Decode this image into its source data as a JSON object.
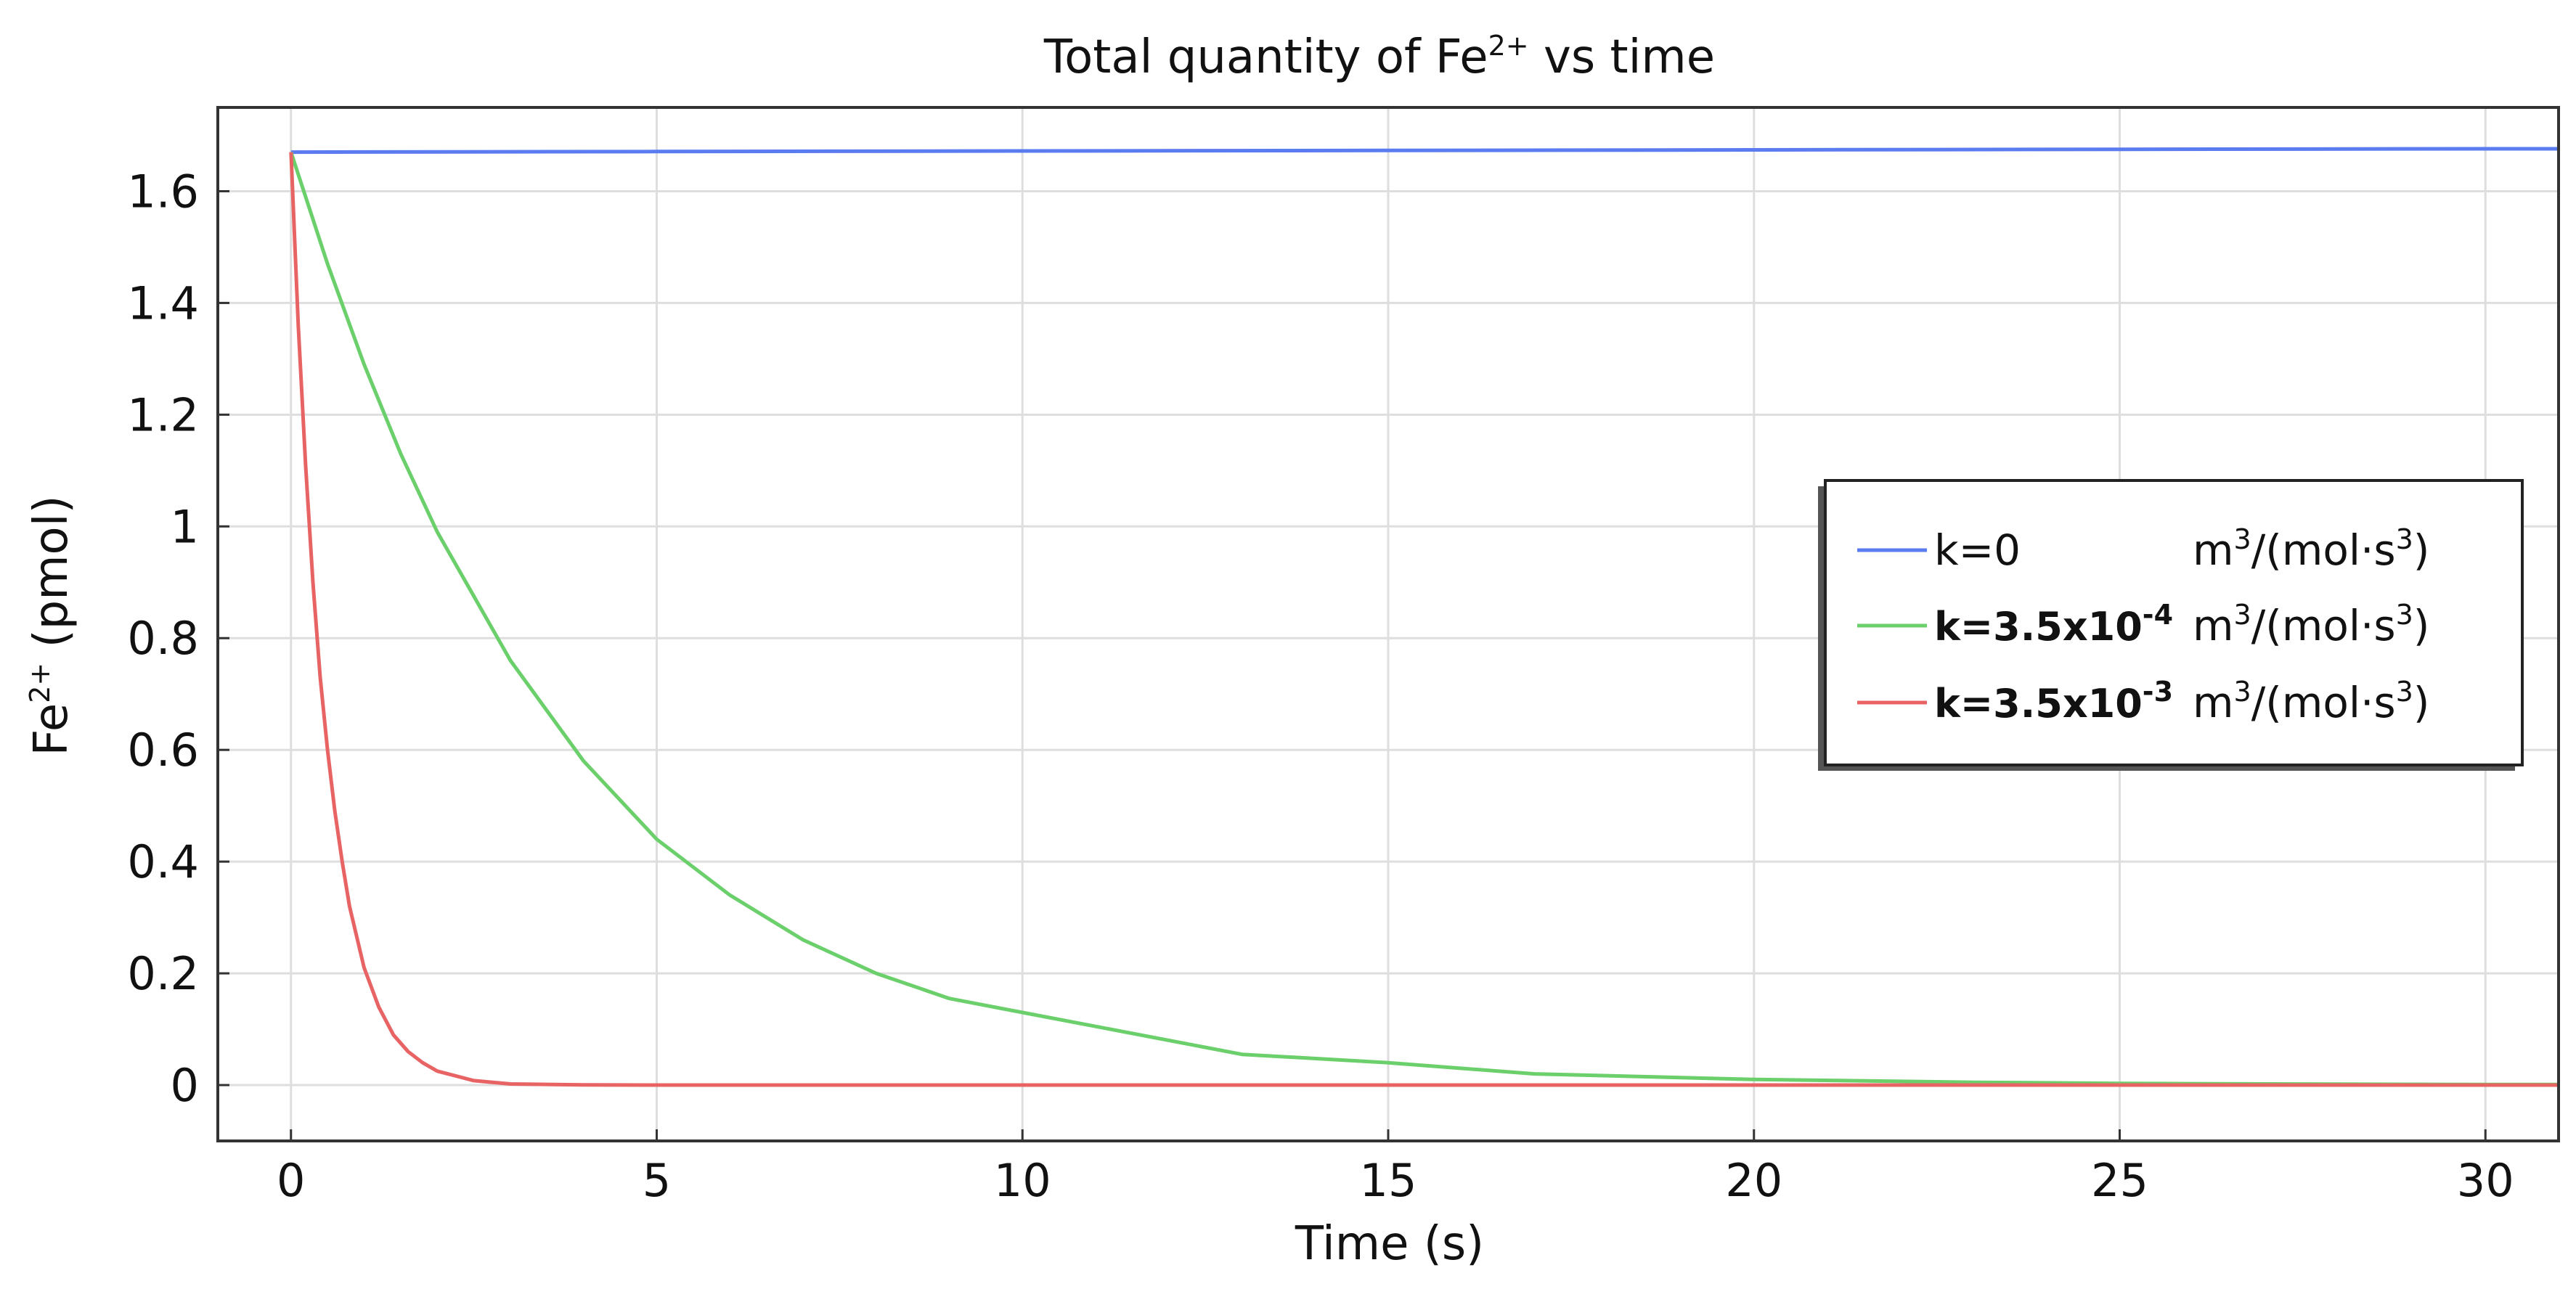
{
  "chart_data": {
    "type": "line",
    "title": {
      "base": "Total quantity of Fe",
      "sup": "2+",
      "rest": " vs time"
    },
    "xlabel": "Time (s)",
    "ylabel": {
      "base": "Fe",
      "sup": "2+",
      "rest": " (pmol)"
    },
    "xlim": [
      -1,
      31
    ],
    "ylim": [
      -0.1,
      1.75
    ],
    "x_ticks": [
      0,
      5,
      10,
      15,
      20,
      25,
      30
    ],
    "x_tick_labels": [
      "0",
      "5",
      "10",
      "15",
      "20",
      "25",
      "30"
    ],
    "y_ticks": [
      0,
      0.2,
      0.4,
      0.6,
      0.8,
      1.0,
      1.2,
      1.4,
      1.6
    ],
    "y_tick_labels": [
      "0",
      "0.2",
      "0.4",
      "0.6",
      "0.8",
      "1",
      "1.2",
      "1.4",
      "1.6"
    ],
    "grid": true,
    "legend_position": "right",
    "series": [
      {
        "name": "k=0 m3/(mol·s3)",
        "legend": {
          "k": "k=0",
          "k_sup": "",
          "unit_base": "m",
          "unit_sup1": "3",
          "unit_mid": "/(mol·s",
          "unit_sup2": "3",
          "unit_end": ")"
        },
        "color": "#5b7bf0",
        "x": [
          0,
          5,
          10,
          15,
          20,
          25,
          30,
          31
        ],
        "y": [
          1.67,
          1.671,
          1.672,
          1.673,
          1.674,
          1.675,
          1.676,
          1.676
        ]
      },
      {
        "name": "k=3.5x10-4 m3/(mol·s3)",
        "legend": {
          "k": "k=3.5x10",
          "k_sup": "-4",
          "unit_base": "m",
          "unit_sup1": "3",
          "unit_mid": "/(mol·s",
          "unit_sup2": "3",
          "unit_end": ")"
        },
        "color": "#6bd06b",
        "x": [
          0,
          0.5,
          1,
          1.5,
          2,
          3,
          4,
          5,
          6,
          7,
          8,
          9,
          10,
          11,
          12,
          13,
          15,
          17,
          20,
          23,
          25,
          27,
          30,
          31
        ],
        "y": [
          1.67,
          1.47,
          1.29,
          1.13,
          0.99,
          0.76,
          0.58,
          0.44,
          0.34,
          0.26,
          0.2,
          0.155,
          0.13,
          0.105,
          0.08,
          0.055,
          0.04,
          0.02,
          0.01,
          0.005,
          0.003,
          0.002,
          0.001,
          0.001
        ]
      },
      {
        "name": "k=3.5x10-3 m3/(mol·s3)",
        "legend": {
          "k": "k=3.5x10",
          "k_sup": "-3",
          "unit_base": "m",
          "unit_sup1": "3",
          "unit_mid": "/(mol·s",
          "unit_sup2": "3",
          "unit_end": ")"
        },
        "color": "#e86464",
        "x": [
          0,
          0.1,
          0.2,
          0.3,
          0.4,
          0.5,
          0.6,
          0.7,
          0.8,
          1.0,
          1.2,
          1.4,
          1.6,
          1.8,
          2.0,
          2.5,
          3,
          4,
          5,
          10,
          20,
          31
        ],
        "y": [
          1.67,
          1.36,
          1.11,
          0.9,
          0.73,
          0.6,
          0.49,
          0.4,
          0.32,
          0.21,
          0.14,
          0.09,
          0.06,
          0.04,
          0.025,
          0.008,
          0.002,
          0.0003,
          0,
          0,
          0,
          0
        ]
      }
    ]
  }
}
